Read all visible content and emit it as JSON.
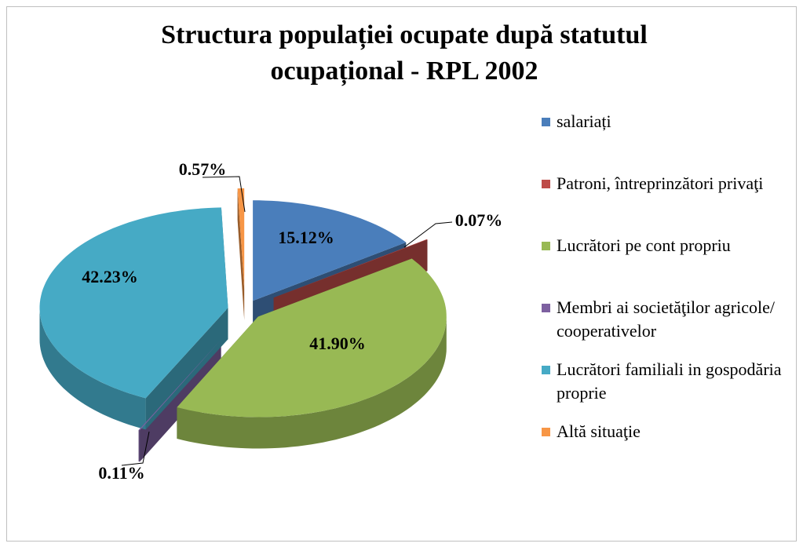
{
  "chart_data": {
    "type": "pie",
    "title": "Structura populației ocupate după statutul ocupațional - RPL 2002",
    "categories": [
      "salariați",
      "Patroni, întreprinzători privaţi",
      "Lucrători pe cont propriu",
      "Membri ai societăţilor agricole/ cooperativelor",
      "Lucrători familiali in gospodăria proprie",
      "Altă situaţie"
    ],
    "values": [
      15.12,
      0.07,
      41.9,
      0.11,
      42.23,
      0.57
    ],
    "value_labels": [
      "15.12%",
      "0.07%",
      "41.90%",
      "0.11%",
      "42.23%",
      "0.57%"
    ],
    "colors": [
      "#4a7ebb",
      "#be4b48",
      "#98b954",
      "#7d60a0",
      "#46aac5",
      "#f79646"
    ],
    "legend": "right"
  }
}
